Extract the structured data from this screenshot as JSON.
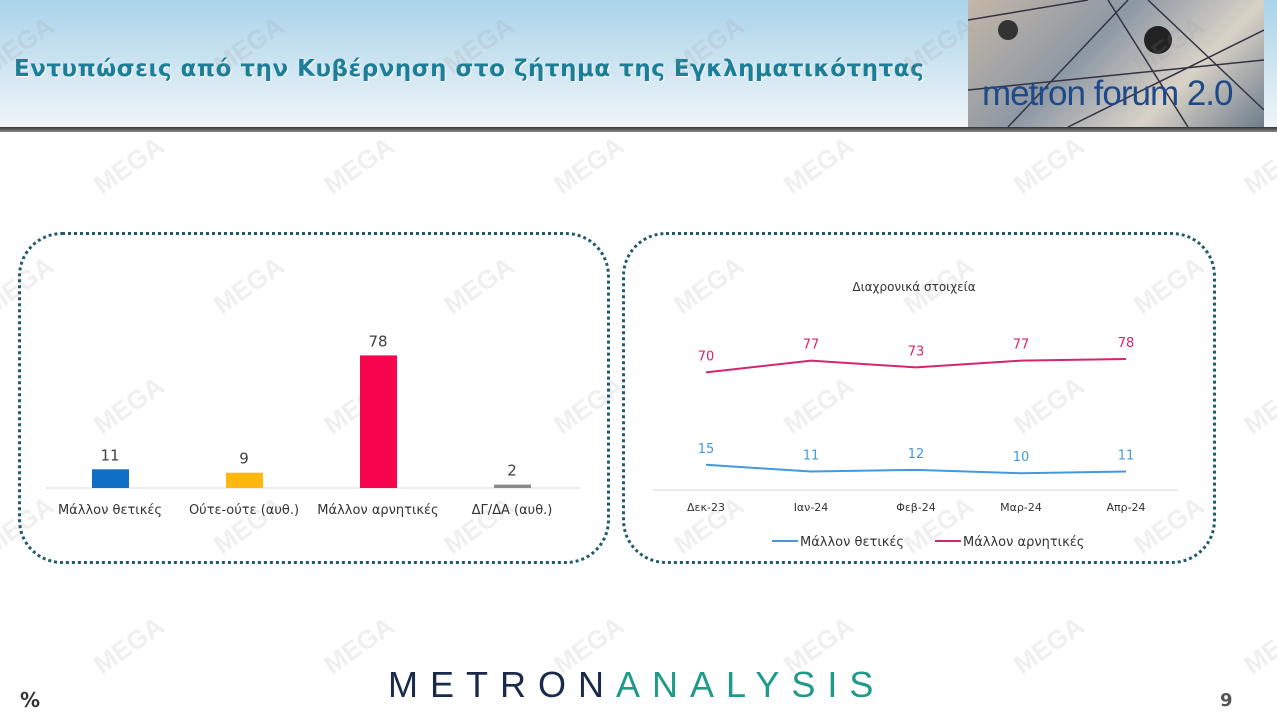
{
  "header": {
    "title": "Εντυπώσεις από την Κυβέρνηση στο ζήτημα της Εγκληματικότητας",
    "logo_text": "metron forum 2.0"
  },
  "watermark": "MEGA",
  "footer": {
    "brand_left": "METRON",
    "brand_right": "ANALYSIS",
    "unit": "%",
    "page_number": "9"
  },
  "colors": {
    "title": "#1d7e98",
    "positive": "#4199e1",
    "negative": "#d6246e",
    "brand_dark": "#1a2a4a",
    "brand_teal": "#1f9a8a"
  },
  "chart_data": [
    {
      "type": "bar",
      "categories": [
        "Μάλλον θετικές",
        "Ούτε-ούτε (αυθ.)",
        "Μάλλον αρνητικές",
        "ΔΓ/ΔΑ (αυθ.)"
      ],
      "values": [
        11,
        9,
        78,
        2
      ],
      "colors": [
        "#0f6fc6",
        "#ffb80f",
        "#f7064e",
        "#8a8a8a"
      ],
      "ylim": [
        0,
        100
      ]
    },
    {
      "type": "line",
      "title": "Διαχρονικά στοιχεία",
      "categories": [
        "Δεκ-23",
        "Ιαν-24",
        "Φεβ-24",
        "Μαρ-24",
        "Απρ-24"
      ],
      "series": [
        {
          "name": "Μάλλον θετικές",
          "values": [
            15,
            11,
            12,
            10,
            11
          ],
          "color": "#4199e1"
        },
        {
          "name": "Μάλλον αρνητικές",
          "values": [
            70,
            77,
            73,
            77,
            78
          ],
          "color": "#d6246e"
        }
      ],
      "ylim": [
        0,
        110
      ],
      "legend": "bottom"
    }
  ]
}
